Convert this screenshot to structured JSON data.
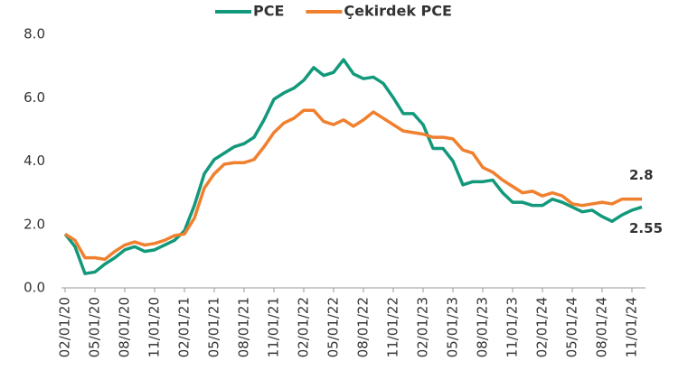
{
  "chart_data": {
    "type": "line",
    "categories": [
      "02/01/20",
      null,
      null,
      "05/01/20",
      null,
      null,
      "08/01/20",
      null,
      null,
      "11/01/20",
      null,
      null,
      "02/01/21",
      null,
      null,
      "05/01/21",
      null,
      null,
      "08/01/21",
      null,
      null,
      "11/01/21",
      null,
      null,
      "02/01/22",
      null,
      null,
      "05/01/22",
      null,
      null,
      "08/01/22",
      null,
      null,
      "11/01/22",
      null,
      null,
      "02/01/23",
      null,
      null,
      "05/01/23",
      null,
      null,
      "08/01/23",
      null,
      null,
      "11/01/23",
      null,
      null,
      "02/01/24",
      null,
      null,
      "05/01/24",
      null,
      null,
      "08/01/24",
      null,
      null,
      "11/01/24",
      null
    ],
    "series": [
      {
        "name": "PCE",
        "color": "#12987b",
        "values": [
          1.7,
          1.3,
          0.45,
          0.5,
          0.75,
          0.95,
          1.2,
          1.3,
          1.15,
          1.2,
          1.35,
          1.5,
          1.8,
          2.6,
          3.6,
          4.05,
          4.25,
          4.45,
          4.55,
          4.75,
          5.3,
          5.95,
          6.15,
          6.3,
          6.55,
          6.95,
          6.7,
          6.8,
          7.2,
          6.75,
          6.6,
          6.65,
          6.45,
          6.0,
          5.5,
          5.5,
          5.15,
          4.4,
          4.4,
          4.0,
          3.25,
          3.35,
          3.35,
          3.4,
          3.0,
          2.7,
          2.7,
          2.6,
          2.6,
          2.8,
          2.7,
          2.55,
          2.4,
          2.45,
          2.25,
          2.1,
          2.3,
          2.45,
          2.55
        ]
      },
      {
        "name": "Çekirdek PCE",
        "color": "#f07f2e",
        "values": [
          1.7,
          1.5,
          0.95,
          0.95,
          0.9,
          1.15,
          1.35,
          1.45,
          1.35,
          1.4,
          1.5,
          1.65,
          1.7,
          2.2,
          3.15,
          3.6,
          3.9,
          3.95,
          3.95,
          4.05,
          4.45,
          4.9,
          5.2,
          5.35,
          5.6,
          5.6,
          5.25,
          5.15,
          5.3,
          5.1,
          5.3,
          5.55,
          5.35,
          5.15,
          4.95,
          4.9,
          4.85,
          4.75,
          4.75,
          4.7,
          4.35,
          4.25,
          3.8,
          3.65,
          3.4,
          3.2,
          3.0,
          3.05,
          2.9,
          3.0,
          2.9,
          2.65,
          2.6,
          2.65,
          2.7,
          2.65,
          2.8,
          2.8,
          2.8
        ]
      }
    ],
    "ylim": [
      0,
      8
    ],
    "yticks": [
      {
        "value": 0,
        "label": "0.0"
      },
      {
        "value": 2,
        "label": "2.0"
      },
      {
        "value": 4,
        "label": "4.0"
      },
      {
        "value": 6,
        "label": "6.0"
      },
      {
        "value": 8,
        "label": "8.0"
      }
    ],
    "legend": "top",
    "end_labels": true
  }
}
